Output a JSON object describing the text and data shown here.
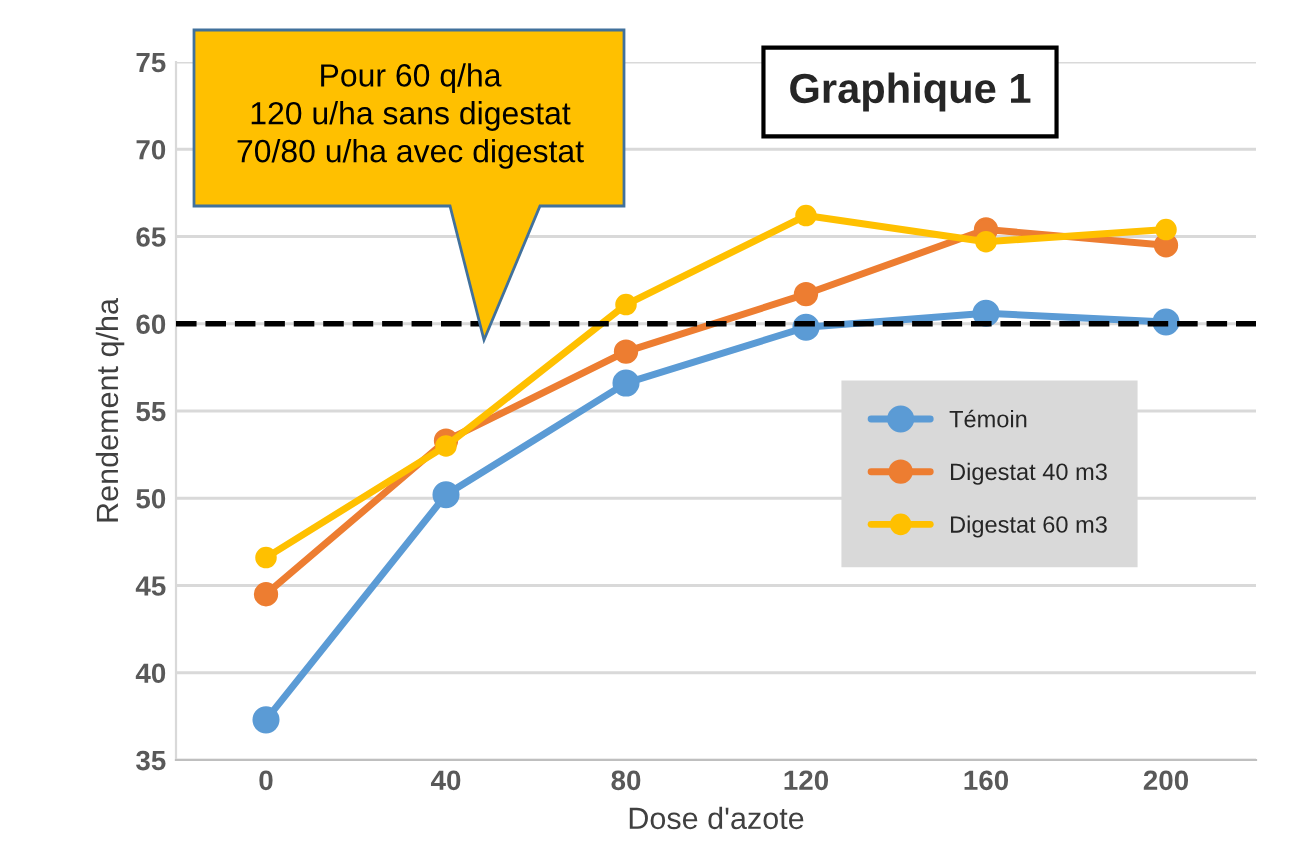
{
  "chart_data": {
    "type": "line",
    "title": "Graphique 1",
    "xlabel": "Dose d'azote",
    "ylabel": "Rendement q/ha",
    "categories": [
      "0",
      "40",
      "80",
      "120",
      "160",
      "200"
    ],
    "series": [
      {
        "name": "Témoin",
        "color": "#5b9bd5",
        "values": [
          37.3,
          50.2,
          56.6,
          59.8,
          60.6,
          60.1
        ]
      },
      {
        "name": "Digestat 40 m3",
        "color": "#ed7d31",
        "values": [
          44.5,
          53.3,
          58.4,
          61.7,
          65.4,
          64.5
        ]
      },
      {
        "name": "Digestat 60 m3",
        "color": "#ffc000",
        "values": [
          46.6,
          53.0,
          61.1,
          66.2,
          64.7,
          65.4
        ]
      }
    ],
    "ylim": [
      35,
      75
    ],
    "yticks": [
      35,
      40,
      45,
      50,
      55,
      60,
      65,
      70,
      75
    ],
    "ref_lines": [
      {
        "axis": "y",
        "value": 60,
        "color": "#000000",
        "line_style": "dashed"
      }
    ],
    "annotations": [
      "Pour 60 q/ha\n120 u/ha sans digestat\n70/80 u/ha avec digestat"
    ],
    "grid": "y",
    "legend": "right",
    "marker": "circle",
    "line_style": "solid"
  }
}
